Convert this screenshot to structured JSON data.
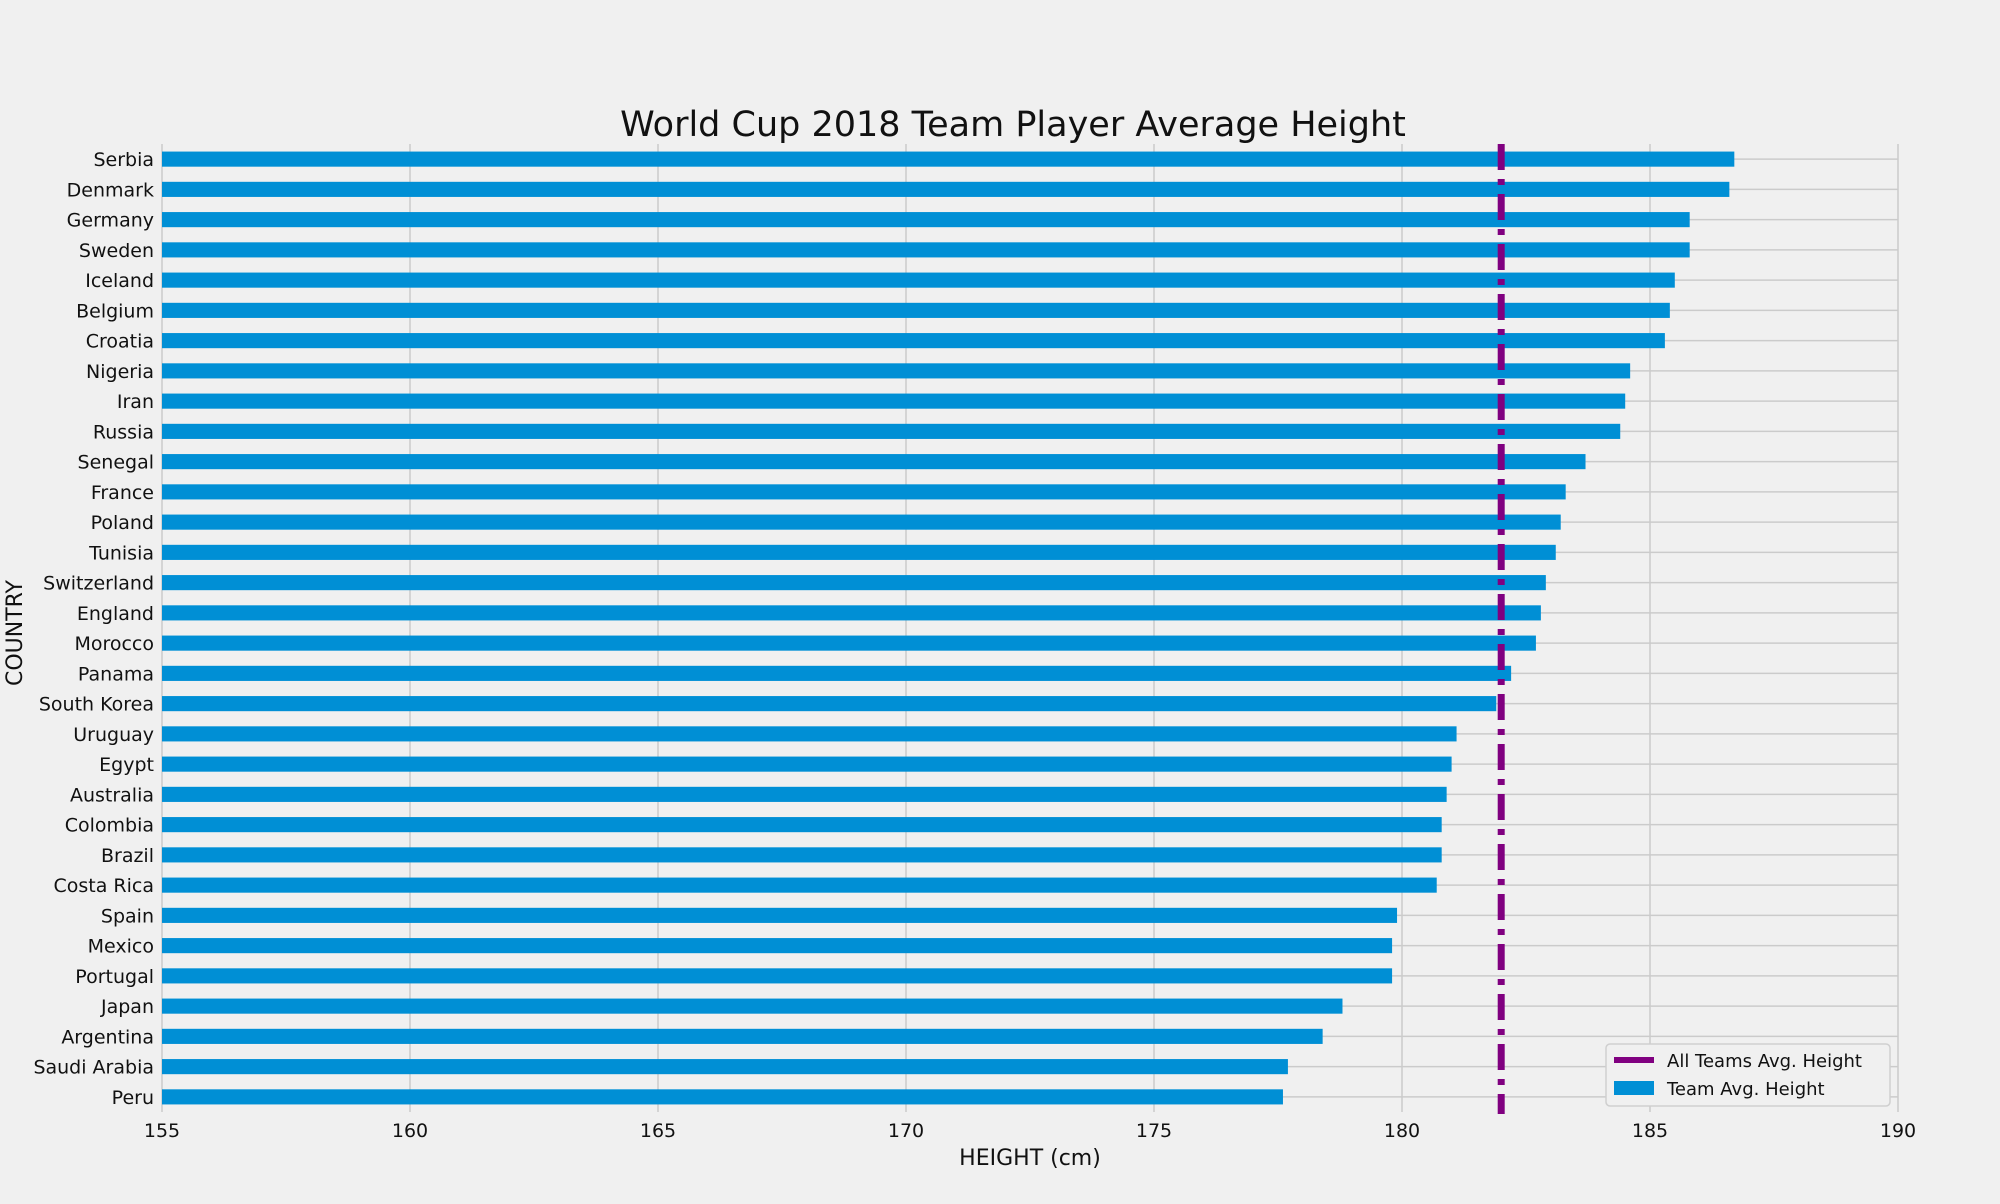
{
  "chart_data": {
    "type": "bar",
    "orientation": "horizontal",
    "title": "World Cup 2018 Team Player Average Height",
    "xlabel": "HEIGHT (cm)",
    "ylabel": "COUNTRY",
    "xlim": [
      155,
      190
    ],
    "xticks": [
      "155",
      "160",
      "165",
      "170",
      "175",
      "180",
      "185",
      "190"
    ],
    "grid": true,
    "legend_position": "bottom-right",
    "categories": [
      "Serbia",
      "Denmark",
      "Germany",
      "Sweden",
      "Iceland",
      "Belgium",
      "Croatia",
      "Nigeria",
      "Iran",
      "Russia",
      "Senegal",
      "France",
      "Poland",
      "Tunisia",
      "Switzerland",
      "England",
      "Morocco",
      "Panama",
      "South Korea",
      "Uruguay",
      "Egypt",
      "Australia",
      "Colombia",
      "Brazil",
      "Costa Rica",
      "Spain",
      "Mexico",
      "Portugal",
      "Japan",
      "Argentina",
      "Saudi Arabia",
      "Peru"
    ],
    "series": [
      {
        "name": "Team Avg. Height",
        "color": "#008fd5",
        "values": [
          186.7,
          186.6,
          185.8,
          185.8,
          185.5,
          185.4,
          185.3,
          184.6,
          184.5,
          184.4,
          183.7,
          183.3,
          183.2,
          183.1,
          182.9,
          182.8,
          182.7,
          182.2,
          181.9,
          181.1,
          181.0,
          180.9,
          180.8,
          180.8,
          180.7,
          179.9,
          179.8,
          179.8,
          178.8,
          178.4,
          177.7,
          177.6
        ]
      }
    ],
    "reference_line": {
      "name": "All Teams Avg. Height",
      "value": 182.0,
      "color": "#800080",
      "style": "dashdot"
    }
  }
}
